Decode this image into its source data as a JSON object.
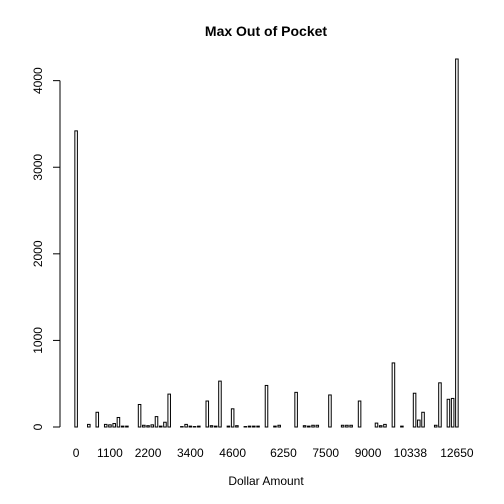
{
  "chart_data": {
    "type": "bar",
    "title": "Max Out of Pocket",
    "xlabel": "Dollar Amount",
    "ylabel": "",
    "ylim": [
      0,
      4250
    ],
    "yticks": [
      0,
      1000,
      2000,
      3000,
      4000
    ],
    "xtick_labels": [
      "0",
      "1100",
      "2200",
      "3400",
      "4600",
      "6250",
      "7500",
      "9000",
      "10338",
      "12650"
    ],
    "xtick_indices": [
      0,
      8,
      17,
      27,
      37,
      49,
      59,
      69,
      79,
      90
    ],
    "grid": false,
    "legend": "none",
    "bar_fill": "#ffffff",
    "bar_stroke": "#000000",
    "values": [
      3420,
      0,
      0,
      30,
      0,
      170,
      0,
      30,
      25,
      40,
      110,
      10,
      10,
      0,
      0,
      260,
      20,
      15,
      25,
      120,
      10,
      55,
      380,
      0,
      0,
      5,
      30,
      10,
      5,
      10,
      0,
      300,
      15,
      10,
      530,
      0,
      10,
      210,
      15,
      0,
      5,
      10,
      10,
      10,
      0,
      480,
      0,
      10,
      20,
      0,
      0,
      0,
      400,
      0,
      15,
      10,
      20,
      20,
      0,
      0,
      370,
      0,
      0,
      20,
      20,
      20,
      0,
      300,
      0,
      0,
      0,
      45,
      15,
      30,
      0,
      740,
      0,
      10,
      0,
      0,
      390,
      80,
      170,
      0,
      0,
      20,
      510,
      0,
      320,
      330,
      4250
    ]
  }
}
